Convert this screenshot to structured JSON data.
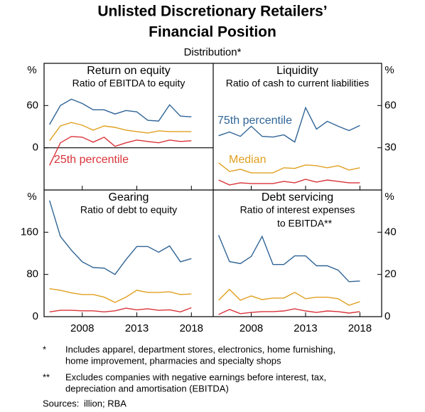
{
  "title": [
    "Unlisted Discretionary Retailers’",
    "Financial Position"
  ],
  "subtitle": "Distribution*",
  "notes": [
    {
      "symbol": "*",
      "lines": [
        "Includes apparel, department stores, electronics, home furnishing,",
        "home improvement, pharmacies and specialty shops"
      ]
    },
    {
      "symbol": "**",
      "lines": [
        "Excludes companies with negative earnings before interest, tax,",
        "depreciation and amortisation (EBITDA)"
      ]
    }
  ],
  "sources": {
    "label": "Sources:",
    "text": "illion; RBA"
  },
  "chart_data": [
    {
      "type": "line",
      "title": "Return on equity",
      "subtitle": [
        "Ratio of EBITDA to equity"
      ],
      "ylabel": "%",
      "x": [
        2005,
        2006,
        2007,
        2008,
        2009,
        2010,
        2011,
        2012,
        2013,
        2014,
        2015,
        2016,
        2017,
        2018
      ],
      "xlim": [
        2004.5,
        2020
      ],
      "xticks": [
        2008,
        2013,
        2018
      ],
      "ylim": [
        -60,
        120
      ],
      "yticks": [
        0,
        60
      ],
      "series": [
        {
          "color": "#2f6496",
          "values": [
            33,
            60,
            69,
            63,
            54,
            54,
            48,
            53,
            51,
            39,
            38,
            61,
            45,
            44
          ]
        },
        {
          "color": "#e0a020",
          "values": [
            10,
            31,
            36,
            32,
            25,
            31,
            29,
            25,
            23,
            21,
            24,
            23,
            23,
            23
          ]
        },
        {
          "name": "25th percentile",
          "color": "#d9343a",
          "values": [
            -25,
            7,
            16,
            15,
            8,
            15,
            2,
            7,
            11,
            9,
            7,
            11,
            9,
            10
          ]
        }
      ]
    },
    {
      "type": "line",
      "title": "Liquidity",
      "subtitle": [
        "Ratio of cash to current liabilities"
      ],
      "ylabel": "%",
      "x": [
        2005,
        2006,
        2007,
        2008,
        2009,
        2010,
        2011,
        2012,
        2013,
        2014,
        2015,
        2016,
        2017,
        2018
      ],
      "xlim": [
        2004.5,
        2020
      ],
      "xticks": [
        2008,
        2013,
        2018
      ],
      "ylim": [
        0,
        90
      ],
      "yticks": [
        30,
        60
      ],
      "series": [
        {
          "name": "75th percentile",
          "color": "#2f6496",
          "values": [
            38.6,
            41.2,
            38.1,
            45.3,
            38.1,
            37.6,
            39.2,
            34.1,
            58.5,
            43.3,
            48.8,
            45.3,
            42.2,
            45.8
          ]
        },
        {
          "name": "Median",
          "color": "#e0a020",
          "values": [
            19.3,
            13.2,
            14.7,
            12.2,
            12.2,
            12.2,
            15.8,
            15.3,
            17.8,
            17.3,
            15.8,
            17.3,
            14.2,
            15.8
          ]
        },
        {
          "color": "#d9343a",
          "values": [
            7.1,
            3.6,
            5.1,
            4.6,
            4.6,
            4.6,
            6.1,
            5.1,
            7.6,
            5.6,
            7.1,
            6.1,
            5.1,
            5.1
          ]
        }
      ]
    },
    {
      "type": "line",
      "title": "Gearing",
      "subtitle": [
        "Ratio of debt to equity"
      ],
      "ylabel": "%",
      "x": [
        2005,
        2006,
        2007,
        2008,
        2009,
        2010,
        2011,
        2012,
        2013,
        2014,
        2015,
        2016,
        2017,
        2018
      ],
      "xlim": [
        2004.5,
        2020
      ],
      "xticks": [
        2008,
        2013,
        2018
      ],
      "ylim": [
        0,
        240
      ],
      "yticks": [
        0,
        80,
        160
      ],
      "series": [
        {
          "color": "#2f6496",
          "values": [
            220,
            152,
            126,
            104,
            93,
            92,
            80,
            108,
            133,
            133,
            122,
            134,
            104,
            110
          ]
        },
        {
          "color": "#e0a020",
          "values": [
            53,
            50,
            45,
            42,
            42,
            37,
            27,
            37,
            50,
            46,
            46,
            47,
            42,
            43
          ]
        },
        {
          "color": "#d9343a",
          "values": [
            9,
            12,
            12,
            11,
            11,
            9,
            11,
            16,
            13,
            15,
            12,
            13,
            9,
            17
          ]
        }
      ]
    },
    {
      "type": "line",
      "title": "Debt servicing",
      "subtitle": [
        "Ratio of interest expenses",
        "to EBITDA**"
      ],
      "ylabel": "%",
      "x": [
        2005,
        2006,
        2007,
        2008,
        2009,
        2010,
        2011,
        2012,
        2013,
        2014,
        2015,
        2016,
        2017,
        2018
      ],
      "xlim": [
        2004.5,
        2020
      ],
      "xticks": [
        2008,
        2013,
        2018
      ],
      "ylim": [
        0,
        60
      ],
      "yticks": [
        0,
        20,
        40
      ],
      "series": [
        {
          "color": "#2f6496",
          "values": [
            38.6,
            26.1,
            25.1,
            28.5,
            38,
            24.7,
            24.7,
            28.8,
            28.8,
            24.1,
            24.1,
            22,
            16.6,
            16.9
          ]
        },
        {
          "color": "#e0a020",
          "values": [
            7.8,
            12.9,
            7.8,
            9.8,
            8.1,
            8.8,
            8.8,
            11.5,
            8.5,
            9.2,
            9.2,
            8.5,
            5.4,
            7.1
          ]
        },
        {
          "color": "#d9343a",
          "values": [
            1,
            3.4,
            1.4,
            2,
            2.4,
            2.4,
            2.7,
            3.7,
            2.7,
            2,
            2.7,
            2.4,
            1.7,
            2.4
          ]
        }
      ]
    }
  ]
}
